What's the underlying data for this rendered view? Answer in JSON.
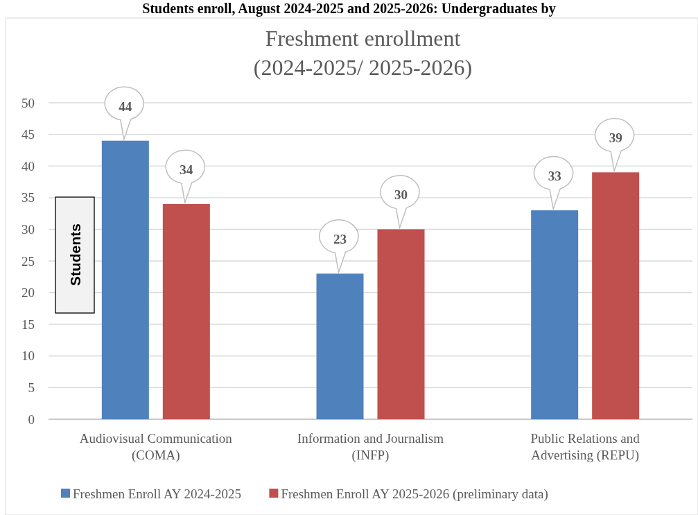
{
  "chart_data": {
    "type": "bar",
    "title": "Freshment enrollment\n(2024-2025/ 2025-2026)",
    "ylabel": "Students",
    "annotations": [
      "Students enroll, August 2024-2025 and 2025-2026: Undergraduates by"
    ],
    "categories": [
      "Audiovisual Communication (COMA)",
      "Information and Journalism (INFP)",
      "Public Relations and Advertising (REPU)"
    ],
    "series": [
      {
        "name": "Freshmen Enroll AY 2024-2025",
        "color": "#4f81bd",
        "values": [
          44,
          23,
          33
        ]
      },
      {
        "name": "Freshmen Enroll AY 2025-2026 (preliminary data)",
        "color": "#c0504d",
        "values": [
          34,
          30,
          39
        ]
      }
    ],
    "ylim": [
      0,
      50
    ],
    "yticks": [
      0,
      5,
      10,
      15,
      20,
      25,
      30,
      35,
      40,
      45,
      50
    ],
    "grid": "y",
    "legend": "bottom",
    "data_labels": true
  }
}
